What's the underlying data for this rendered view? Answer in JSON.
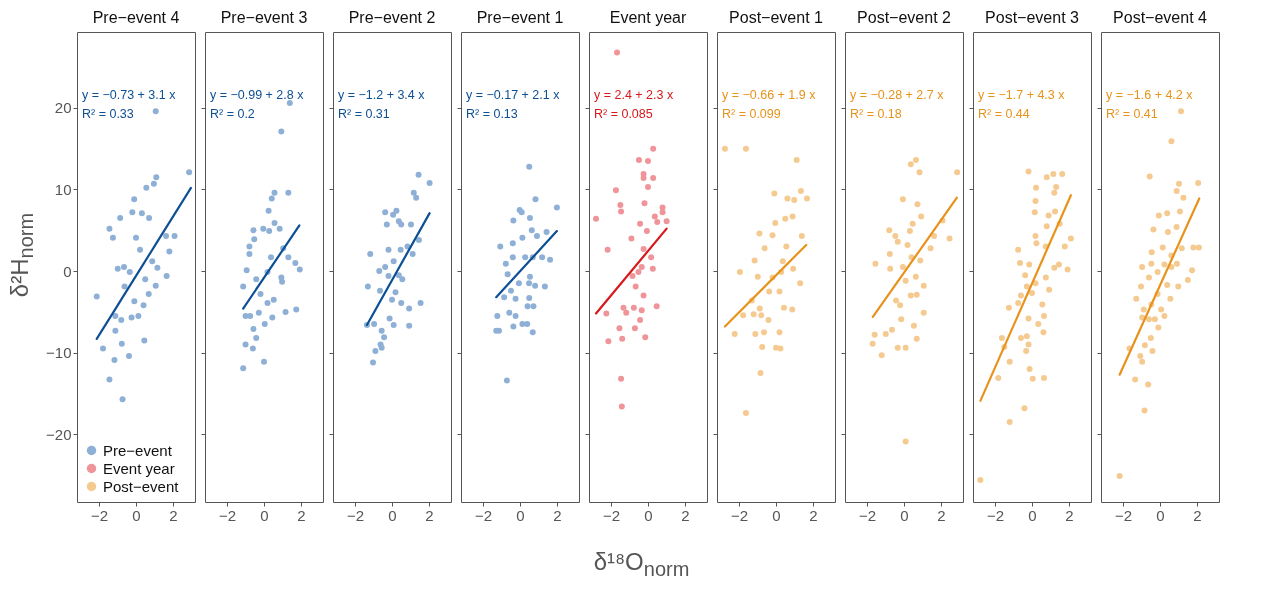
{
  "chart_data": [
    {
      "type": "scatter",
      "title": "Pre−event 4",
      "ylabel": "δ²H$_{norm}$",
      "xlim": [
        -3.2,
        3.2
      ],
      "xticks": [
        -2,
        0,
        2
      ],
      "ylim": [
        -28.3,
        29.3
      ],
      "yticks": [
        -20,
        -10,
        0,
        10,
        20
      ],
      "grid": false,
      "marker": "circle",
      "legend": "bottom left",
      "annotations": [
        "y = −0.73 + 3.1 x",
        "R² = 0.33"
      ],
      "series": [
        {
          "name": "Pre−event",
          "color": "#8fb0d6",
          "x": [
            -2.13,
            -1.79,
            -1.44,
            -1.17,
            -0.73,
            -0.38,
            -0.77,
            0.45,
            -1.44,
            -1.25,
            -0.86,
            -0.1,
            -0.2,
            0.56,
            0.97,
            1.1,
            2.88,
            1.07,
            0.71,
            0.32,
            1.63,
            2.09,
            1.81,
            1.66,
            1.16,
            1.07,
            0.22,
            0,
            -0.34,
            -0.65,
            -0.99,
            -0.62,
            -1.12,
            -0.8,
            -0.24,
            0.13,
            0.69,
            0.41,
            -0.09,
            -1.12,
            0.88,
            0.5
          ],
          "values": [
            -3.1,
            -9.5,
            -13.3,
            -10.9,
            -15.7,
            -10.4,
            -8.9,
            -8.5,
            5.2,
            4.1,
            6.5,
            8.8,
            7.2,
            10.2,
            10.7,
            11.5,
            12.1,
            19.6,
            6.5,
            7.1,
            4.3,
            4.3,
            2.4,
            -0.6,
            0.4,
            -1.8,
            2.6,
            4.1,
            -0.1,
            0.5,
            0.3,
            -1.9,
            -5.5,
            -6.0,
            -5.7,
            -5.5,
            -2.8,
            -4.2,
            -3.7,
            -7.3,
            1.2,
            -1.0
          ]
        },
        {
          "type": "line",
          "marker": "none",
          "color": "#0d4f94",
          "x": [
            -2.13,
            2.98
          ],
          "values": [
            -8.3,
            10.2
          ]
        }
      ]
    },
    {
      "type": "scatter",
      "title": "Pre−event 3",
      "xlim": [
        -3.2,
        3.2
      ],
      "xticks": [
        -2,
        0,
        2
      ],
      "ylim": [
        -28.3,
        29.3
      ],
      "yticks": [
        -20,
        -10,
        0,
        10,
        20
      ],
      "grid": false,
      "marker": "circle",
      "tick_labels": "x",
      "annotations": [
        "y = −0.99 + 2.8 x",
        "R² = 0.2"
      ],
      "series": [
        {
          "color": "#8fb0d6",
          "x": [
            -1.13,
            -1.0,
            -0.6,
            -0.42,
            0,
            0.04,
            -0.57,
            -1.0,
            -1.13,
            -0.94,
            -0.79,
            -0.57,
            -0.79,
            -0.53,
            -0.04,
            0.28,
            0.57,
            0.25,
            0.42,
            0.57,
            1.32,
            0.85,
            1.04,
            1.32,
            1.7,
            1.94,
            1.75,
            1.17,
            0.94,
            0.98,
            0.53,
            0.19,
            -0.19,
            -0.42,
            0.19,
            0.38,
            0.45,
            0.94,
            1.4,
            -0.28,
            -0.75
          ],
          "values": [
            -11.9,
            -9.0,
            -9.5,
            -8.2,
            -11.1,
            -6.5,
            -7.1,
            -5.5,
            -1.9,
            0.1,
            2.1,
            5.0,
            3.0,
            3.9,
            5.2,
            4.9,
            5.9,
            7.4,
            8.9,
            9.6,
            9.6,
            5.2,
            2.8,
            1.7,
            1.0,
            0.2,
            -4.7,
            -5.0,
            -0.8,
            -1.3,
            -3.5,
            -3.9,
            -2.8,
            -1.0,
            -0.1,
            1.7,
            -5.7,
            17.1,
            20.6,
            -5.1,
            -5.5
          ]
        },
        {
          "type": "line",
          "marker": "none",
          "color": "#0d4f94",
          "x": [
            -1.13,
            1.92
          ],
          "values": [
            -4.6,
            5.6
          ]
        }
      ]
    },
    {
      "type": "scatter",
      "title": "Pre−event 2",
      "xlim": [
        -3.2,
        3.2
      ],
      "xticks": [
        -2,
        0,
        2
      ],
      "ylim": [
        -28.3,
        29.3
      ],
      "yticks": [
        -20,
        -10,
        0,
        10,
        20
      ],
      "grid": false,
      "marker": "circle",
      "tick_labels": "x",
      "annotations": [
        "y = −1.2 + 3.4 x",
        "R² = 0.31"
      ],
      "series": [
        {
          "color": "#8fb0d6",
          "x": [
            -1.03,
            -0.9,
            -0.56,
            -0.62,
            -0.43,
            -1.36,
            -0.97,
            -0.56,
            -0.13,
            0.09,
            0.93,
            1.55,
            0.93,
            0.5,
            0,
            0.19,
            -0.65,
            -1.31,
            -0.69,
            -0.19,
            0.37,
            0.56,
            -0.37,
            0.09,
            -1.18,
            -0.19,
            0.47,
            0.84,
            1.12,
            1.46,
            1.03,
            0.5,
            0.37,
            -0.28,
            -0.37,
            0.06,
            0.24,
            1.18,
            1.31,
            1.44,
            2.04
          ],
          "values": [
            -11.2,
            -9.8,
            -9.4,
            -9.0,
            -8.1,
            -6.6,
            -6.5,
            -7.3,
            -5.8,
            -6.6,
            -6.7,
            -3.9,
            -4.6,
            -3.9,
            -3.5,
            -2.6,
            -2.4,
            -1.9,
            0,
            -0.6,
            -0.5,
            -1.0,
            0.5,
            1.2,
            2.1,
            2.6,
            2.6,
            3.0,
            2.1,
            3.8,
            5.7,
            5.7,
            6.1,
            5.7,
            7.2,
            6.9,
            7.4,
            9.6,
            9.0,
            11.8,
            10.8
          ]
        },
        {
          "type": "line",
          "marker": "none",
          "color": "#0d4f94",
          "x": [
            -1.36,
            2.04
          ],
          "values": [
            -6.6,
            7.1
          ]
        }
      ]
    },
    {
      "type": "scatter",
      "title": "Pre−event 1",
      "xlim": [
        -3.2,
        3.2
      ],
      "xticks": [
        -2,
        0,
        2
      ],
      "ylim": [
        -28.3,
        29.3
      ],
      "yticks": [
        -20,
        -10,
        0,
        10,
        20
      ],
      "grid": false,
      "marker": "circle",
      "tick_labels": "x",
      "annotations": [
        "y = −0.17 + 2.1 x",
        "R² = 0.13"
      ],
      "series": [
        {
          "color": "#8fb0d6",
          "x": [
            -0.71,
            -1.29,
            -1.14,
            -1.23,
            -0.36,
            0.13,
            0.39,
            0.69,
            -0.58,
            -0.24,
            -0.24,
            0.5,
            0.73,
            0.41,
            -0.86,
            -0.49,
            -0.06,
            0.49,
            0.82,
            1.35,
            -0.67,
            0.54,
            -0.77,
            -0.39,
            0.28,
            0.69,
            1.2,
            1.63,
            -1.07,
            -0.39,
            0.13,
            0.64,
            0.92,
            -0.36,
            -0.02,
            0.09,
            0.54,
            0.84,
            0.5,
            2.0,
            1.44
          ],
          "values": [
            -13.4,
            -7.3,
            -7.3,
            -5.5,
            -6.8,
            -6.5,
            -6.5,
            -7.5,
            -5.1,
            -5.5,
            -3.4,
            -3.3,
            -4.3,
            -4.3,
            -3.2,
            -2.4,
            -1.5,
            -1.5,
            -1.8,
            -1.9,
            -0.4,
            -0.7,
            0.9,
            1.7,
            1.7,
            1.7,
            1.7,
            1.4,
            3.0,
            3.4,
            4.1,
            5.0,
            4.3,
            6.2,
            7.5,
            7.2,
            6.5,
            8.8,
            12.8,
            7.8,
            4.8
          ]
        },
        {
          "type": "line",
          "marker": "none",
          "color": "#0d4f94",
          "x": [
            -1.29,
            2.0
          ],
          "values": [
            -3.2,
            4.9
          ]
        }
      ]
    },
    {
      "type": "scatter",
      "title": "Event year",
      "xlabel": "δ¹⁸O$_{norm}$",
      "xlim": [
        -3.2,
        3.2
      ],
      "xticks": [
        -2,
        0,
        2
      ],
      "ylim": [
        -28.3,
        29.3
      ],
      "yticks": [
        -20,
        -10,
        0,
        10,
        20
      ],
      "grid": false,
      "marker": "circle",
      "tick_labels": "x",
      "annotations": [
        "y = 2.4 + 2.3 x",
        "R² = 0.085"
      ],
      "series": [
        {
          "name": "Event year",
          "color": "#ef9599",
          "x": [
            -1.68,
            -2.82,
            -2.19,
            -1.74,
            -1.5,
            -1.46,
            -0.49,
            0,
            0.28,
            -0.24,
            -0.24,
            0,
            0.28,
            -0.19,
            0.79,
            0.79,
            1.01,
            0.37,
            0.5,
            -0.43,
            -0.06,
            -0.9,
            -0.24,
            0.17,
            -0.34,
            -0.84,
            -0.52,
            0.26,
            -0.67,
            -0.24,
            0.47,
            -0.34,
            -0.77,
            -1.33,
            -1.18,
            -2.26,
            -0.43,
            -1.55,
            -0.71,
            -0.15,
            -1.4,
            -2.15,
            -1.46,
            -1.42
          ],
          "values": [
            26.8,
            6.4,
            2.6,
            9.9,
            8.1,
            7.3,
            13.6,
            13.5,
            15.0,
            11.9,
            11.4,
            10.3,
            11.4,
            8.3,
            7.8,
            7.2,
            6.1,
            6.7,
            6.0,
            5.8,
            4.9,
            4.0,
            2.7,
            1.7,
            0.5,
            -0.6,
            -0.1,
            0.3,
            -1.9,
            -3.0,
            -4.3,
            -4.8,
            -4.5,
            -4.5,
            -5.1,
            -5.2,
            -6.0,
            -7.0,
            -7.0,
            -8.1,
            -8.3,
            -8.6,
            -13.2,
            -16.6
          ]
        },
        {
          "type": "line",
          "marker": "none",
          "color": "#d7191c",
          "x": [
            -2.82,
            1.01
          ],
          "values": [
            -5.2,
            5.2
          ]
        }
      ]
    },
    {
      "type": "scatter",
      "title": "Post−event 1",
      "xlim": [
        -3.2,
        3.2
      ],
      "xticks": [
        -2,
        0,
        2
      ],
      "ylim": [
        -28.3,
        29.3
      ],
      "yticks": [
        -20,
        -10,
        0,
        10,
        20
      ],
      "grid": false,
      "marker": "circle",
      "tick_labels": "x",
      "annotations": [
        "y = −0.66 + 1.9 x",
        "R² = 0.099"
      ],
      "series": [
        {
          "name": "Post−event",
          "color": "#f5ca90",
          "x": [
            -2.77,
            -1.63,
            1.12,
            -0.09,
            0.62,
            0.99,
            1.35,
            1.68,
            0.9,
            0.5,
            -0.04,
            -0.9,
            -0.19,
            -0.62,
            0.56,
            1.4,
            -1.16,
            0.37,
            -1.96,
            -0.99,
            -0.19,
            0.28,
            0.93,
            1.31,
            -1.31,
            -0.37,
            0.19,
            0.43,
            0.88,
            -0.88,
            -1.21,
            -0.8,
            -0.41,
            -1.78,
            -2.24,
            -1.12,
            -0.65,
            0.19,
            -0.75,
            0,
            0.24,
            -0.84,
            -1.63
          ],
          "values": [
            15.0,
            15.0,
            13.6,
            9.5,
            8.9,
            8.7,
            9.8,
            8.9,
            6.7,
            6.4,
            5.9,
            4.6,
            4.4,
            2.8,
            3.0,
            4.3,
            1.3,
            1.2,
            -0.1,
            -0.7,
            -0.8,
            -0.1,
            0.3,
            -1.5,
            -3.6,
            -2.5,
            -2.5,
            -4.5,
            -4.7,
            -4.6,
            -5.3,
            -5.4,
            -6.0,
            -5.4,
            -7.7,
            -7.7,
            -7.5,
            -7.5,
            -9.3,
            -9.4,
            -9.5,
            -12.5,
            -17.4
          ]
        },
        {
          "type": "line",
          "marker": "none",
          "color": "#e8921c",
          "x": [
            -2.77,
            1.64
          ],
          "values": [
            -6.8,
            3.2
          ]
        }
      ]
    },
    {
      "type": "scatter",
      "title": "Post−event 2",
      "xlim": [
        -3.2,
        3.2
      ],
      "xticks": [
        -2,
        0,
        2
      ],
      "ylim": [
        -28.3,
        29.3
      ],
      "yticks": [
        -20,
        -10,
        0,
        10,
        20
      ],
      "grid": false,
      "marker": "circle",
      "tick_labels": "x",
      "annotations": [
        "y = −0.28 + 2.7 x",
        "R² = 0.18"
      ],
      "series": [
        {
          "color": "#f5ca90",
          "x": [
            0.09,
            -1.7,
            -1.21,
            -1.59,
            -0.99,
            -0.65,
            -0.34,
            0.09,
            0.69,
            0.54,
            1.07,
            -0.15,
            -0.21,
            -0.43,
            0.37,
            0.69,
            1.07,
            0.09,
            0.64,
            -0.75,
            -1.55,
            -0.06,
            0.88,
            0.41,
            -0.77,
            -0.34,
            0.19,
            1.44,
            1.63,
            2.47,
            -0.47,
            -0.8,
            0.32,
            0.47,
            0.93,
            -0.06,
            0.73,
            2.09,
            0.37,
            0.65,
            0.84,
            2.88
          ],
          "values": [
            -20.9,
            -8.9,
            -10.3,
            -7.8,
            -7.7,
            -7.2,
            -9.4,
            -9.4,
            -8.3,
            -6.7,
            -5.1,
            -5.9,
            -4.2,
            -3.6,
            -3.0,
            -2.9,
            -1.8,
            -1.2,
            -0.7,
            0.3,
            0.9,
            0.5,
            1.3,
            1.7,
            2.1,
            3.6,
            3.2,
            2.8,
            4.3,
            4.0,
            4.3,
            5.0,
            4.9,
            5.8,
            6.7,
            8.8,
            8.2,
            6.2,
            13.1,
            13.6,
            12.1,
            12.1
          ]
        },
        {
          "type": "line",
          "marker": "none",
          "color": "#e8921c",
          "x": [
            -1.69,
            2.87
          ],
          "values": [
            -5.6,
            9.0
          ]
        }
      ]
    },
    {
      "type": "scatter",
      "title": "Post−event 3",
      "xlim": [
        -3.2,
        3.2
      ],
      "xticks": [
        -2,
        0,
        2
      ],
      "ylim": [
        -28.3,
        29.3
      ],
      "yticks": [
        -20,
        -10,
        0,
        10,
        20
      ],
      "grid": false,
      "marker": "circle",
      "tick_labels": "x",
      "annotations": [
        "y = −1.7 + 4.3 x",
        "R² = 0.44"
      ],
      "series": [
        {
          "color": "#f5ca90",
          "x": [
            -2.8,
            -1.21,
            -0.41,
            -1.83,
            0.04,
            0.65,
            -0.13,
            -1.21,
            -1.5,
            -1.63,
            -0.6,
            -0.28,
            -0.19,
            -0.32,
            0.34,
            0.62,
            -0.19,
            0.65,
            -1.25,
            -0.75,
            -0.6,
            0,
            0.56,
            0.93,
            -0.28,
            0.19,
            -0.37,
            0.75,
            -0.15,
            -0.65,
            1.21,
            1.93,
            1.46,
            -0.75,
            0.24,
            0.75,
            1.78,
            2.11,
            0.19,
            0.8,
            1.5,
            0.15,
            0.9,
            1.25,
            0.19,
            1.21,
            1.31,
            0.22,
            -0.19,
            0.8,
            1.16,
            1.64
          ],
          "values": [
            -25.6,
            -18.5,
            -16.8,
            -13.1,
            -13.2,
            -13.1,
            -12.0,
            -11.1,
            -9.3,
            -8.2,
            -8.2,
            -8.0,
            -9.0,
            -9.8,
            -6.5,
            -7.5,
            -5.8,
            -5.5,
            -4.5,
            -3.9,
            -3.0,
            -2.7,
            -4.1,
            -2.3,
            -1.9,
            -1.5,
            -0.5,
            -0.8,
            0.8,
            1.0,
            0.4,
            0.2,
            0.8,
            2.6,
            3.4,
            3.0,
            3.0,
            4.0,
            4.3,
            5.5,
            5.8,
            7.2,
            6.8,
            7.3,
            8.6,
            9.6,
            10.3,
            10.2,
            12.2,
            11.5,
            11.9,
            11.9
          ]
        },
        {
          "type": "line",
          "marker": "none",
          "color": "#e8921c",
          "x": [
            -2.8,
            2.11
          ],
          "values": [
            -15.9,
            9.3
          ]
        }
      ]
    },
    {
      "type": "scatter",
      "title": "Post−event 4",
      "xlim": [
        -3.2,
        3.2
      ],
      "xticks": [
        -2,
        0,
        2
      ],
      "ylim": [
        -28.3,
        29.3
      ],
      "yticks": [
        -20,
        -10,
        0,
        10,
        20
      ],
      "grid": false,
      "marker": "circle",
      "tick_labels": "x",
      "annotations": [
        "y = −1.6 + 4.2 x",
        "R² = 0.41"
      ],
      "series": [
        {
          "color": "#f5ca90",
          "x": [
            -2.19,
            -0.84,
            -0.64,
            -1.35,
            -1.66,
            -1.07,
            -0.97,
            -0.82,
            -0.41,
            -0.5,
            -0.09,
            -0.97,
            -0.6,
            -0.28,
            0.24,
            -0.88,
            0.06,
            -1.29,
            -0.47,
            0.56,
            -0.13,
            -1.03,
            0.39,
            0.99,
            -0.6,
            -0.97,
            -0.13,
            0.62,
            1.51,
            -0.47,
            0.24,
            0.92,
            1.74,
            -0.45,
            0.15,
            0.62,
            1.18,
            1.81,
            2.11,
            -0.36,
            0.43,
            0.9,
            -0.06,
            0.39,
            1.08,
            1.27,
            0.9,
            1.03,
            2.07,
            -0.56,
            0.62,
            1.14
          ],
          "values": [
            -25.1,
            -17.1,
            -13.9,
            -13.3,
            -9.5,
            -10.4,
            -11.1,
            -9.1,
            -9.8,
            -8.2,
            -6.9,
            -5.7,
            -5.9,
            -5.9,
            -5.5,
            -4.7,
            -4.7,
            -3.4,
            -4.1,
            -3.4,
            -2.8,
            -1.9,
            -1.7,
            -1.9,
            -0.8,
            0.5,
            -0.1,
            0.5,
            -1.1,
            0.9,
            0.8,
            0.9,
            0.1,
            2.3,
            2.9,
            1.9,
            2.8,
            2.9,
            2.9,
            5.1,
            4.8,
            5.4,
            6.8,
            7.1,
            7.3,
            9.0,
            9.8,
            10.7,
            10.8,
            11.6,
            15.9,
            19.6
          ]
        },
        {
          "type": "line",
          "marker": "none",
          "color": "#e8921c",
          "x": [
            -2.19,
            2.13
          ],
          "values": [
            -12.7,
            8.9
          ]
        }
      ]
    }
  ]
}
